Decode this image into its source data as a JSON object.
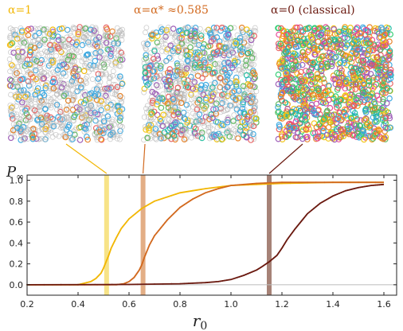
{
  "chart_data": {
    "type": "line",
    "xlabel": "r0",
    "ylabel": "P∞",
    "xlim": [
      0.2,
      1.65
    ],
    "ylim": [
      -0.1,
      1.05
    ],
    "x_ticks": [
      "0.2",
      "0.4",
      "0.6",
      "0.8",
      "1.0",
      "1.2",
      "1.4",
      "1.6"
    ],
    "y_ticks": [
      "0.0",
      "0.2",
      "0.4",
      "0.6",
      "0.8",
      "1.0"
    ],
    "grid": false,
    "series": [
      {
        "key": "alpha1",
        "color": "#f2b705",
        "x": [
          0.2,
          0.3,
          0.4,
          0.45,
          0.47,
          0.49,
          0.5,
          0.51,
          0.52,
          0.53,
          0.55,
          0.57,
          0.6,
          0.65,
          0.7,
          0.8,
          0.9,
          1.0,
          1.2,
          1.4,
          1.6
        ],
        "y": [
          0.0,
          0.0,
          0.0,
          0.03,
          0.06,
          0.11,
          0.16,
          0.22,
          0.28,
          0.35,
          0.45,
          0.54,
          0.63,
          0.73,
          0.8,
          0.88,
          0.92,
          0.95,
          0.97,
          0.98,
          0.98
        ]
      },
      {
        "key": "alpha_star",
        "color": "#d2691e",
        "x": [
          0.2,
          0.4,
          0.55,
          0.58,
          0.6,
          0.62,
          0.64,
          0.65,
          0.66,
          0.68,
          0.7,
          0.75,
          0.8,
          0.85,
          0.9,
          0.95,
          1.0,
          1.1,
          1.2,
          1.4,
          1.6
        ],
        "y": [
          0.0,
          0.0,
          0.0,
          0.01,
          0.03,
          0.07,
          0.14,
          0.19,
          0.26,
          0.38,
          0.47,
          0.62,
          0.74,
          0.82,
          0.88,
          0.92,
          0.95,
          0.97,
          0.98,
          0.98,
          0.98
        ]
      },
      {
        "key": "alpha0",
        "color": "#6b1a10",
        "x": [
          0.2,
          0.6,
          0.8,
          0.9,
          0.95,
          1.0,
          1.05,
          1.1,
          1.12,
          1.15,
          1.18,
          1.2,
          1.22,
          1.25,
          1.28,
          1.3,
          1.35,
          1.4,
          1.45,
          1.5,
          1.55,
          1.6
        ],
        "y": [
          0.0,
          0.003,
          0.01,
          0.02,
          0.03,
          0.05,
          0.09,
          0.14,
          0.17,
          0.22,
          0.28,
          0.35,
          0.43,
          0.53,
          0.62,
          0.68,
          0.78,
          0.85,
          0.9,
          0.93,
          0.95,
          0.96
        ]
      }
    ],
    "thresholds": [
      {
        "x": 0.512,
        "color": "#f6e07a"
      },
      {
        "x": 0.655,
        "color": "#e0a578"
      },
      {
        "x": 1.15,
        "color": "#9c7468"
      }
    ]
  },
  "panels": [
    {
      "title": "α=1",
      "color": "#f2b705",
      "fill": 0.28,
      "palette": [
        "#3aa8e0",
        "#3aa8e0",
        "#3aa8e0",
        "#f2b705",
        "#e85d5d",
        "#5cb85c",
        "#9b59b6",
        "#e67e22"
      ]
    },
    {
      "title": "α=α* ≈0.585",
      "color": "#d2691e",
      "fill": 0.42,
      "palette": [
        "#3aa8e0",
        "#3aa8e0",
        "#3aa8e0",
        "#e67e22",
        "#e85d5d",
        "#5cb85c",
        "#9b59b6",
        "#f1c40f",
        "#1abc9c"
      ]
    },
    {
      "title": "α=0 (classical)",
      "color": "#6b1a10",
      "fill": 1.0,
      "palette": [
        "#3aa8e0",
        "#e85d5d",
        "#5cb85c",
        "#9b59b6",
        "#e67e22",
        "#f1c40f",
        "#1abc9c",
        "#e84393",
        "#2ecc71",
        "#f39c12"
      ]
    }
  ]
}
